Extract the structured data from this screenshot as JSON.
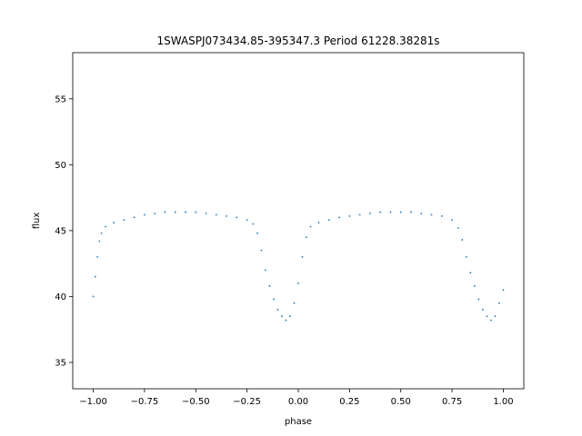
{
  "chart_data": {
    "type": "scatter",
    "title": "1SWASPJ073434.85-395347.3 Period 61228.38281s",
    "xlabel": "phase",
    "ylabel": "flux",
    "xlim": [
      -1.1,
      1.1
    ],
    "ylim": [
      33,
      58.5
    ],
    "grid": false,
    "legend": "none",
    "marker_color": "#1f77b4",
    "marker_size": "tiny",
    "xticks": [
      {
        "value": -1.0,
        "label": "−1.00"
      },
      {
        "value": -0.75,
        "label": "−0.75"
      },
      {
        "value": -0.5,
        "label": "−0.50"
      },
      {
        "value": -0.25,
        "label": "−0.25"
      },
      {
        "value": 0.0,
        "label": "0.00"
      },
      {
        "value": 0.25,
        "label": "0.25"
      },
      {
        "value": 0.5,
        "label": "0.50"
      },
      {
        "value": 0.75,
        "label": "0.75"
      },
      {
        "value": 1.0,
        "label": "1.00"
      }
    ],
    "yticks": [
      {
        "value": 35,
        "label": "35"
      },
      {
        "value": 40,
        "label": "40"
      },
      {
        "value": 45,
        "label": "45"
      },
      {
        "value": 50,
        "label": "50"
      },
      {
        "value": 55,
        "label": "55"
      }
    ],
    "series": [
      {
        "points": [
          [
            -1.0,
            40.0
          ],
          [
            -0.99,
            41.5
          ],
          [
            -0.98,
            43.0
          ],
          [
            -0.97,
            44.2
          ],
          [
            -0.96,
            44.8
          ],
          [
            -0.94,
            45.3
          ],
          [
            -0.9,
            45.6
          ],
          [
            -0.85,
            45.8
          ],
          [
            -0.8,
            46.0
          ],
          [
            -0.75,
            46.2
          ],
          [
            -0.7,
            46.3
          ],
          [
            -0.65,
            46.4
          ],
          [
            -0.6,
            46.4
          ],
          [
            -0.55,
            46.4
          ],
          [
            -0.5,
            46.4
          ],
          [
            -0.45,
            46.3
          ],
          [
            -0.4,
            46.2
          ],
          [
            -0.35,
            46.1
          ],
          [
            -0.3,
            46.0
          ],
          [
            -0.25,
            45.8
          ],
          [
            -0.22,
            45.5
          ],
          [
            -0.2,
            44.8
          ],
          [
            -0.18,
            43.5
          ],
          [
            -0.16,
            42.0
          ],
          [
            -0.14,
            40.8
          ],
          [
            -0.12,
            39.8
          ],
          [
            -0.1,
            39.0
          ],
          [
            -0.08,
            38.5
          ],
          [
            -0.06,
            38.2
          ],
          [
            -0.04,
            38.5
          ],
          [
            -0.02,
            39.5
          ],
          [
            0.0,
            41.0
          ],
          [
            0.02,
            43.0
          ],
          [
            0.04,
            44.5
          ],
          [
            0.06,
            45.3
          ],
          [
            0.1,
            45.6
          ],
          [
            0.15,
            45.8
          ],
          [
            0.2,
            46.0
          ],
          [
            0.25,
            46.1
          ],
          [
            0.3,
            46.2
          ],
          [
            0.35,
            46.3
          ],
          [
            0.4,
            46.4
          ],
          [
            0.45,
            46.4
          ],
          [
            0.5,
            46.4
          ],
          [
            0.55,
            46.4
          ],
          [
            0.6,
            46.3
          ],
          [
            0.65,
            46.2
          ],
          [
            0.7,
            46.1
          ],
          [
            0.75,
            45.8
          ],
          [
            0.78,
            45.2
          ],
          [
            0.8,
            44.3
          ],
          [
            0.82,
            43.0
          ],
          [
            0.84,
            41.8
          ],
          [
            0.86,
            40.8
          ],
          [
            0.88,
            39.8
          ],
          [
            0.9,
            39.0
          ],
          [
            0.92,
            38.5
          ],
          [
            0.94,
            38.2
          ],
          [
            0.96,
            38.5
          ],
          [
            0.98,
            39.5
          ],
          [
            1.0,
            40.5
          ]
        ]
      }
    ]
  }
}
